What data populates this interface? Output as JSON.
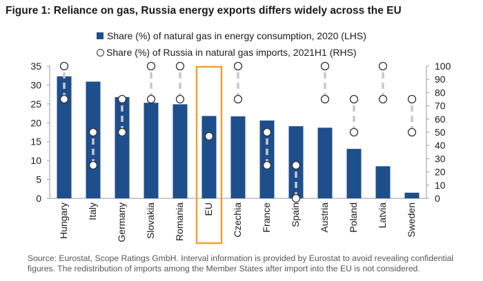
{
  "title": "Figure 1: Reliance on gas, Russia energy exports differs widely across the EU",
  "source": "Source: Eurostat, Scope Ratings GmbH. Interval information is provided by Eurostat to avoid revealing confidential figures. The redistribution of imports among the Member States after import into the EU is not considered.",
  "chart_data": {
    "type": "bar",
    "categories": [
      "Hungary",
      "Italy",
      "Germany",
      "Slovakia",
      "Romania",
      "EU",
      "Czechia",
      "France",
      "Spain",
      "Austria",
      "Poland",
      "Latvia",
      "Sweden"
    ],
    "highlighted_category": "EU",
    "series": [
      {
        "name": "Share (%) of natural gas in energy consumption, 2020 (LHS)",
        "type": "bar",
        "axis": "left",
        "values": [
          32.3,
          30.9,
          26.8,
          25.3,
          24.9,
          21.8,
          21.7,
          20.6,
          19.1,
          18.7,
          13.1,
          8.5,
          1.5
        ]
      },
      {
        "name": "Share (%) of Russia in natural gas imports, 2021H1 (RHS)",
        "type": "interval",
        "axis": "right",
        "ranges": [
          [
            75,
            100
          ],
          [
            25,
            50
          ],
          [
            50,
            75
          ],
          [
            75,
            100
          ],
          [
            75,
            100
          ],
          [
            47,
            47
          ],
          [
            75,
            100
          ],
          [
            25,
            50
          ],
          [
            0,
            25
          ],
          [
            75,
            100
          ],
          [
            50,
            75
          ],
          [
            75,
            100
          ],
          [
            50,
            75
          ]
        ]
      }
    ],
    "y_left": {
      "min": 0,
      "max": 35,
      "step": 5,
      "ticks": [
        "0",
        "5",
        "10",
        "15",
        "20",
        "25",
        "30",
        "35"
      ]
    },
    "y_right": {
      "min": 0,
      "max": 100,
      "step": 10,
      "ticks": [
        "0",
        "10",
        "20",
        "30",
        "40",
        "50",
        "60",
        "70",
        "80",
        "90",
        "100"
      ]
    },
    "colors": {
      "bar": "#1f4e8c",
      "interval_line": "#c8c8c8",
      "highlight_box": "#f0a030",
      "marker_stroke": "#333333"
    },
    "grid": false,
    "legend_position": "top"
  }
}
